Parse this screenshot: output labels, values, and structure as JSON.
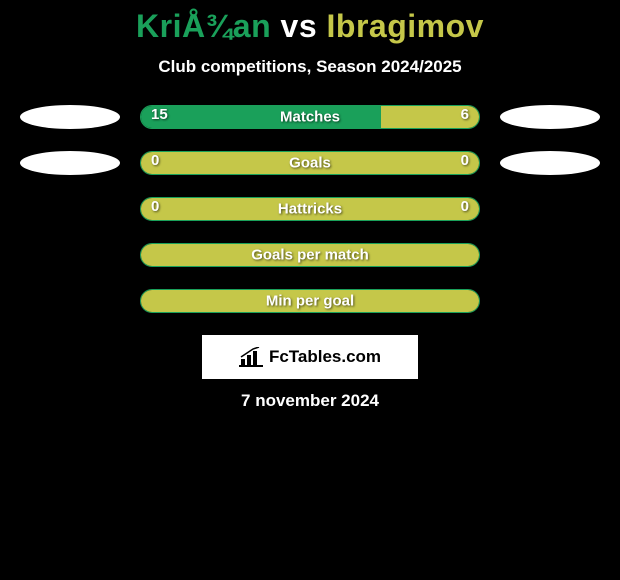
{
  "title": {
    "player1": "KriÅ¾an",
    "vs": " vs ",
    "player2": "Ibragimov",
    "player1_color": "#1aa05a",
    "player2_color": "#c5c749"
  },
  "subtitle": "Club competitions, Season 2024/2025",
  "colors": {
    "left": "#1aa05a",
    "right": "#c5c749",
    "neutral": "#c5c749",
    "bar_border": "#1aa05a"
  },
  "rows": [
    {
      "label": "Matches",
      "left_value": "15",
      "right_value": "6",
      "left_pct": 71,
      "right_pct": 29,
      "left_color": "#1aa05a",
      "right_color": "#c5c749",
      "show_ellipses": true
    },
    {
      "label": "Goals",
      "left_value": "0",
      "right_value": "0",
      "left_pct": 100,
      "right_pct": 0,
      "left_color": "#c5c749",
      "right_color": "#c5c749",
      "show_ellipses": true
    },
    {
      "label": "Hattricks",
      "left_value": "0",
      "right_value": "0",
      "left_pct": 100,
      "right_pct": 0,
      "left_color": "#c5c749",
      "right_color": "#c5c749",
      "show_ellipses": false
    },
    {
      "label": "Goals per match",
      "left_value": "",
      "right_value": "",
      "left_pct": 100,
      "right_pct": 0,
      "left_color": "#c5c749",
      "right_color": "#c5c749",
      "show_ellipses": false
    },
    {
      "label": "Min per goal",
      "left_value": "",
      "right_value": "",
      "left_pct": 100,
      "right_pct": 0,
      "left_color": "#c5c749",
      "right_color": "#c5c749",
      "show_ellipses": false
    }
  ],
  "logo": {
    "text": "FcTables.com"
  },
  "date": "7 november 2024"
}
